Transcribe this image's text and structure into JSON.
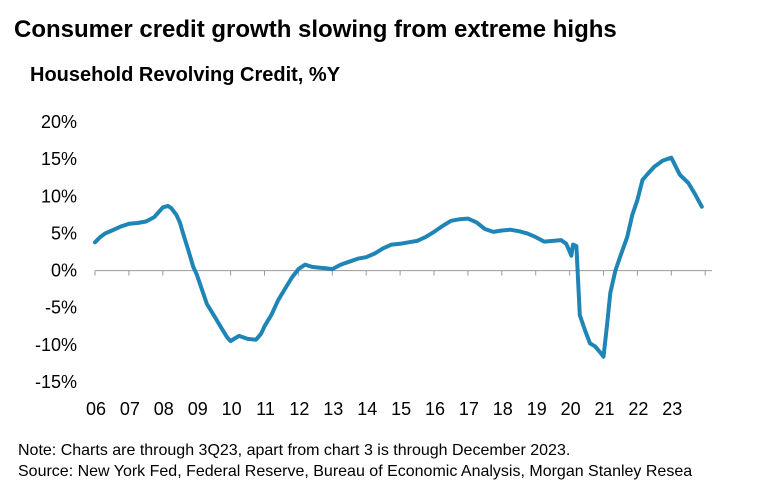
{
  "title": "Consumer credit growth slowing from extreme highs",
  "chart_data": {
    "type": "line",
    "title": "Household Revolving Credit, %Y",
    "xlabel": "",
    "ylabel": "",
    "y_ticks": [
      "20%",
      "15%",
      "10%",
      "5%",
      "0%",
      "-5%",
      "-10%",
      "-15%"
    ],
    "y_tick_values": [
      20,
      15,
      10,
      5,
      0,
      -5,
      -10,
      -15
    ],
    "ylim": [
      -15,
      20
    ],
    "x_ticks": [
      "06",
      "07",
      "08",
      "09",
      "10",
      "11",
      "12",
      "13",
      "14",
      "15",
      "16",
      "17",
      "18",
      "19",
      "20",
      "21",
      "22",
      "23"
    ],
    "xlim": [
      2006.0,
      2024.2
    ],
    "grid": false,
    "line_color": "#1f84b6",
    "series": [
      {
        "x": [
          2006.0,
          2006.15,
          2006.3,
          2006.5,
          2006.75,
          2007.0,
          2007.25,
          2007.5,
          2007.75,
          2008.0,
          2008.15,
          2008.25,
          2008.4,
          2008.5,
          2008.6,
          2008.75,
          2008.9,
          2009.0,
          2009.15,
          2009.3,
          2009.5,
          2009.7,
          2009.9,
          2010.0,
          2010.1,
          2010.25,
          2010.5,
          2010.75,
          2010.9,
          2011.0,
          2011.2,
          2011.4,
          2011.6,
          2011.8,
          2012.0,
          2012.2,
          2012.4,
          2012.6,
          2012.8,
          2013.0,
          2013.25,
          2013.5,
          2013.75,
          2014.0,
          2014.25,
          2014.5,
          2014.75,
          2015.0,
          2015.25,
          2015.5,
          2015.75,
          2016.0,
          2016.25,
          2016.5,
          2016.75,
          2017.0,
          2017.25,
          2017.5,
          2017.75,
          2018.0,
          2018.25,
          2018.5,
          2018.75,
          2019.0,
          2019.25,
          2019.5,
          2019.75,
          2019.9,
          2020.0,
          2020.05,
          2020.1,
          2020.2,
          2020.3,
          2020.45,
          2020.6,
          2020.75,
          2020.9,
          2021.0,
          2021.1,
          2021.2,
          2021.35,
          2021.5,
          2021.7,
          2021.85,
          2022.0,
          2022.15,
          2022.3,
          2022.5,
          2022.75,
          2023.0,
          2023.25,
          2023.5,
          2023.7,
          2023.9
        ],
        "values": [
          3.8,
          4.5,
          5.0,
          5.4,
          5.9,
          6.3,
          6.4,
          6.6,
          7.2,
          8.5,
          8.7,
          8.4,
          7.5,
          6.5,
          5.0,
          2.8,
          0.5,
          -0.5,
          -2.5,
          -4.5,
          -6.0,
          -7.5,
          -9.0,
          -9.5,
          -9.2,
          -8.8,
          -9.2,
          -9.3,
          -8.5,
          -7.5,
          -6.0,
          -4.0,
          -2.5,
          -1.0,
          0.2,
          0.8,
          0.5,
          0.4,
          0.3,
          0.2,
          0.8,
          1.2,
          1.6,
          1.8,
          2.3,
          3.0,
          3.5,
          3.6,
          3.8,
          4.0,
          4.5,
          5.2,
          6.0,
          6.7,
          6.9,
          7.0,
          6.5,
          5.6,
          5.2,
          5.4,
          5.5,
          5.3,
          5.0,
          4.5,
          3.9,
          4.0,
          4.1,
          3.6,
          2.6,
          2.0,
          3.5,
          3.3,
          -6.0,
          -8.0,
          -9.8,
          -10.2,
          -11.0,
          -11.6,
          -7.5,
          -3.0,
          0.0,
          2.0,
          4.5,
          7.5,
          9.5,
          12.2,
          13.0,
          14.0,
          14.8,
          15.2,
          12.9,
          11.8,
          10.3,
          8.6
        ]
      }
    ]
  },
  "notes": {
    "line1": "Note: Charts are through 3Q23, apart from chart 3 is through December 2023.",
    "line2": "Source: New York Fed, Federal Reserve, Bureau of Economic Analysis, Morgan Stanley Resea"
  }
}
